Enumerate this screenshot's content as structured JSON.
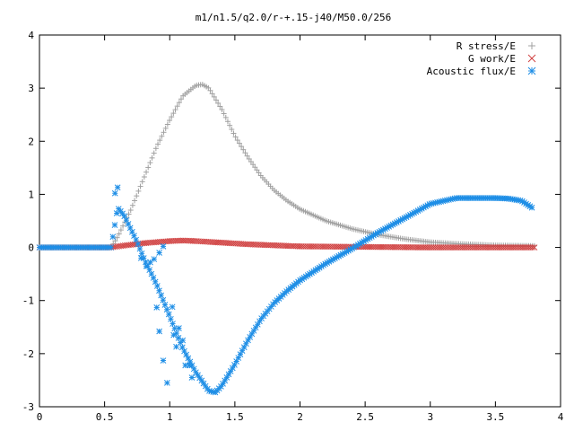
{
  "chart_data": {
    "type": "scatter",
    "title": "m1/n1.5/q2.0/r-+.15-j40/M50.0/256",
    "xlabel": "",
    "ylabel": "",
    "xlim": [
      0,
      4
    ],
    "ylim": [
      -3,
      4
    ],
    "x_ticks": [
      "0",
      "0.5",
      "1",
      "1.5",
      "2",
      "2.5",
      "3",
      "3.5",
      "4"
    ],
    "y_ticks": [
      "4",
      "3",
      "2",
      "1",
      "0",
      "-1",
      "-2",
      "-3"
    ],
    "legend_position": "top-right",
    "grid": false,
    "series": [
      {
        "name": "R stress/E",
        "marker": "plus",
        "color": "#a0a0a0",
        "curve": [
          [
            0,
            0
          ],
          [
            0.55,
            0
          ],
          [
            0.6,
            0.2
          ],
          [
            0.7,
            0.7
          ],
          [
            0.8,
            1.3
          ],
          [
            0.9,
            1.9
          ],
          [
            1.0,
            2.4
          ],
          [
            1.1,
            2.85
          ],
          [
            1.2,
            3.05
          ],
          [
            1.25,
            3.07
          ],
          [
            1.3,
            3.0
          ],
          [
            1.4,
            2.6
          ],
          [
            1.5,
            2.1
          ],
          [
            1.6,
            1.7
          ],
          [
            1.7,
            1.35
          ],
          [
            1.8,
            1.08
          ],
          [
            1.9,
            0.88
          ],
          [
            2.0,
            0.72
          ],
          [
            2.2,
            0.5
          ],
          [
            2.4,
            0.35
          ],
          [
            2.6,
            0.24
          ],
          [
            2.8,
            0.16
          ],
          [
            3.0,
            0.1
          ],
          [
            3.2,
            0.07
          ],
          [
            3.5,
            0.04
          ],
          [
            3.8,
            0.03
          ]
        ]
      },
      {
        "name": "G work/E",
        "marker": "cross",
        "color": "#d04040",
        "curve": [
          [
            0,
            0
          ],
          [
            0.55,
            0
          ],
          [
            0.6,
            0.02
          ],
          [
            0.8,
            0.08
          ],
          [
            1.0,
            0.12
          ],
          [
            1.1,
            0.13
          ],
          [
            1.2,
            0.12
          ],
          [
            1.4,
            0.09
          ],
          [
            1.6,
            0.06
          ],
          [
            1.8,
            0.04
          ],
          [
            2.0,
            0.02
          ],
          [
            2.5,
            0.01
          ],
          [
            3.0,
            0
          ],
          [
            3.8,
            0
          ]
        ]
      },
      {
        "name": "Acoustic flux/E",
        "marker": "asterisk",
        "color": "#1e8ee6",
        "curve": [
          [
            0,
            0
          ],
          [
            0.55,
            0
          ],
          [
            0.6,
            0.75
          ],
          [
            0.65,
            0.6
          ],
          [
            0.7,
            0.35
          ],
          [
            0.75,
            0.1
          ],
          [
            0.8,
            -0.2
          ],
          [
            0.9,
            -0.7
          ],
          [
            1.0,
            -1.3
          ],
          [
            1.1,
            -1.9
          ],
          [
            1.2,
            -2.35
          ],
          [
            1.3,
            -2.7
          ],
          [
            1.35,
            -2.73
          ],
          [
            1.4,
            -2.6
          ],
          [
            1.5,
            -2.2
          ],
          [
            1.6,
            -1.75
          ],
          [
            1.7,
            -1.35
          ],
          [
            1.8,
            -1.05
          ],
          [
            1.9,
            -0.82
          ],
          [
            2.0,
            -0.62
          ],
          [
            2.2,
            -0.3
          ],
          [
            2.4,
            -0.02
          ],
          [
            2.6,
            0.28
          ],
          [
            2.8,
            0.55
          ],
          [
            3.0,
            0.82
          ],
          [
            3.2,
            0.93
          ],
          [
            3.3,
            0.93
          ],
          [
            3.5,
            0.93
          ],
          [
            3.6,
            0.92
          ],
          [
            3.7,
            0.88
          ],
          [
            3.78,
            0.75
          ]
        ],
        "extra_points": [
          [
            0.58,
            1.02
          ],
          [
            0.6,
            1.13
          ],
          [
            0.78,
            -0.2
          ],
          [
            0.82,
            -0.35
          ],
          [
            0.85,
            -0.28
          ],
          [
            0.88,
            -0.22
          ],
          [
            0.92,
            -0.1
          ],
          [
            0.95,
            0.02
          ],
          [
            0.9,
            -1.13
          ],
          [
            0.92,
            -1.58
          ],
          [
            0.95,
            -2.13
          ],
          [
            0.98,
            -2.55
          ],
          [
            1.02,
            -1.12
          ],
          [
            1.03,
            -1.65
          ],
          [
            1.05,
            -1.87
          ],
          [
            1.07,
            -1.52
          ],
          [
            1.1,
            -1.75
          ],
          [
            1.12,
            -2.22
          ],
          [
            1.15,
            -2.22
          ],
          [
            1.17,
            -2.45
          ]
        ]
      }
    ]
  }
}
